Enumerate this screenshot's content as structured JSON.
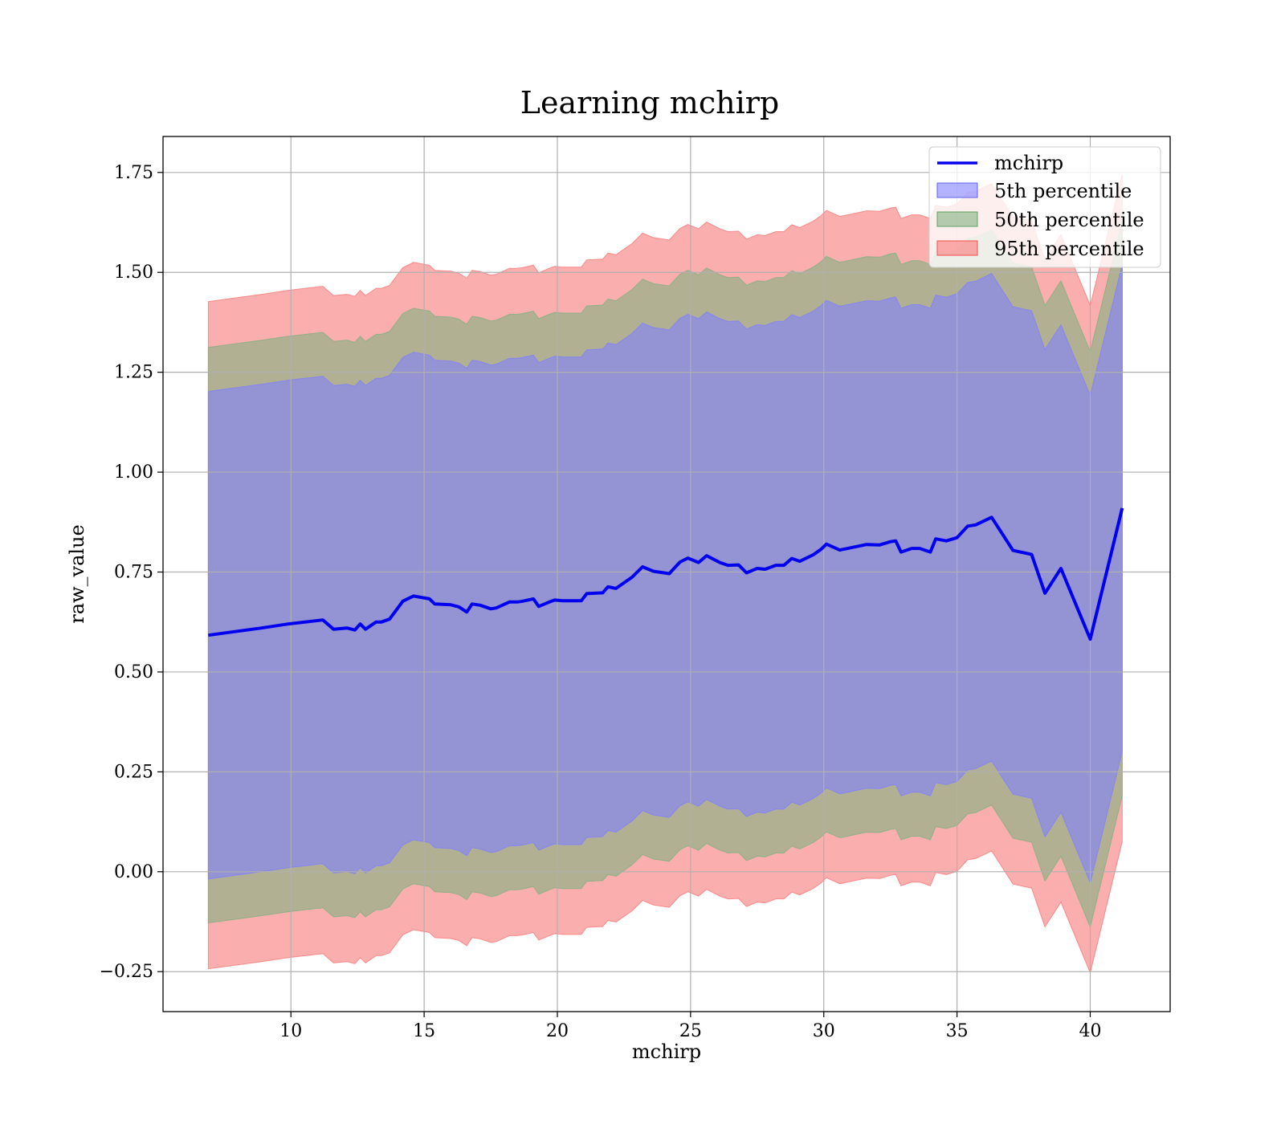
{
  "chart_data": {
    "type": "area",
    "title": "Learning mchirp",
    "xlabel": "mchirp",
    "ylabel": "raw_value",
    "xlim": [
      5.2,
      43.0
    ],
    "ylim": [
      -0.35,
      1.84
    ],
    "grid": true,
    "legend_position": "top-right",
    "x_ticks": [
      10,
      15,
      20,
      25,
      30,
      35,
      40
    ],
    "x_tick_labels": [
      "10",
      "15",
      "20",
      "25",
      "30",
      "35",
      "40"
    ],
    "y_ticks": [
      -0.25,
      0.0,
      0.25,
      0.5,
      0.75,
      1.0,
      1.25,
      1.5,
      1.75
    ],
    "y_tick_labels": [
      "−0.25",
      "0.00",
      "0.25",
      "0.50",
      "0.75",
      "1.00",
      "1.25",
      "1.50",
      "1.75"
    ],
    "x": [
      6.9,
      8.9,
      9.9,
      11.2,
      11.6,
      12.1,
      12.4,
      12.6,
      12.8,
      13.2,
      13.4,
      13.7,
      14.2,
      14.6,
      15.2,
      15.4,
      16.0,
      16.3,
      16.6,
      16.8,
      17.1,
      17.5,
      17.7,
      18.2,
      18.5,
      18.7,
      19.1,
      19.3,
      19.7,
      19.9,
      20.2,
      20.9,
      21.1,
      21.7,
      21.9,
      22.2,
      22.8,
      23.2,
      23.6,
      24.2,
      24.6,
      24.9,
      25.3,
      25.6,
      26.1,
      26.4,
      26.8,
      27.1,
      27.5,
      27.8,
      28.2,
      28.5,
      28.8,
      29.1,
      29.6,
      29.9,
      30.1,
      30.6,
      30.9,
      31.6,
      32.1,
      32.5,
      32.7,
      32.9,
      33.3,
      33.6,
      34.0,
      34.2,
      34.6,
      35.0,
      35.4,
      35.7,
      36.3,
      37.1,
      37.8,
      38.3,
      38.9,
      40.0,
      41.2
    ],
    "series": [
      {
        "name": "mchirp",
        "color": "#0000ee",
        "values": [
          0.592,
          0.61,
          0.62,
          0.63,
          0.607,
          0.61,
          0.605,
          0.62,
          0.607,
          0.625,
          0.625,
          0.632,
          0.677,
          0.69,
          0.683,
          0.67,
          0.668,
          0.663,
          0.65,
          0.67,
          0.667,
          0.658,
          0.66,
          0.675,
          0.675,
          0.677,
          0.683,
          0.664,
          0.675,
          0.68,
          0.678,
          0.678,
          0.696,
          0.698,
          0.713,
          0.709,
          0.737,
          0.763,
          0.752,
          0.746,
          0.775,
          0.785,
          0.774,
          0.791,
          0.774,
          0.767,
          0.768,
          0.748,
          0.759,
          0.757,
          0.767,
          0.767,
          0.784,
          0.777,
          0.793,
          0.807,
          0.82,
          0.805,
          0.809,
          0.819,
          0.818,
          0.826,
          0.828,
          0.8,
          0.809,
          0.809,
          0.8,
          0.833,
          0.828,
          0.836,
          0.865,
          0.868,
          0.887,
          0.804,
          0.794,
          0.697,
          0.759,
          0.582,
          0.91
        ]
      },
      {
        "name": "5th percentile",
        "color": "#8080ff",
        "offset": 0.61
      },
      {
        "name": "50th percentile",
        "color": "#80b080",
        "offset": 0.72
      },
      {
        "name": "95th percentile",
        "color": "#f87878",
        "offset": 0.835
      }
    ]
  }
}
